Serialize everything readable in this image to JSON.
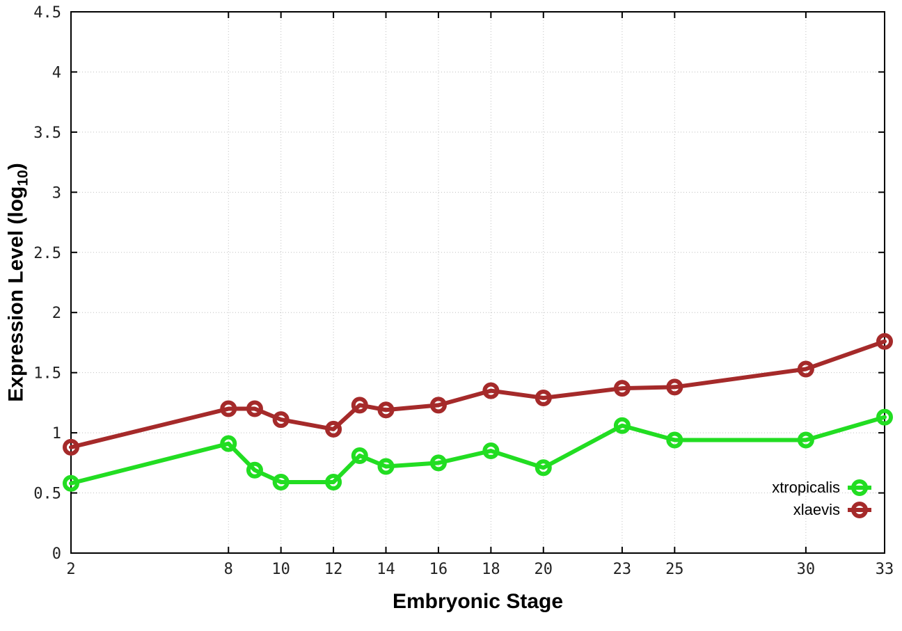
{
  "chart_data": {
    "type": "line",
    "title": "",
    "xlabel": "Embryonic Stage",
    "ylabel": "Expression Level (log10)",
    "ylabel_parts": {
      "main": "Expression Level (log",
      "sub": "10",
      "close": ")"
    },
    "x": [
      2,
      8,
      9,
      10,
      12,
      13,
      14,
      16,
      18,
      20,
      23,
      25,
      30,
      33
    ],
    "series": [
      {
        "name": "xtropicalis",
        "color": "#22dd22",
        "marker": "open-circle",
        "values": [
          0.58,
          0.91,
          0.69,
          0.59,
          0.59,
          0.81,
          0.72,
          0.75,
          0.85,
          0.71,
          1.06,
          0.94,
          0.94,
          1.13
        ]
      },
      {
        "name": "xlaevis",
        "color": "#a52a2a",
        "marker": "open-circle",
        "values": [
          0.88,
          1.2,
          1.2,
          1.11,
          1.03,
          1.23,
          1.19,
          1.23,
          1.35,
          1.29,
          1.37,
          1.38,
          1.53,
          1.76
        ]
      }
    ],
    "x_ticks": [
      2,
      8,
      10,
      12,
      14,
      16,
      18,
      20,
      23,
      25,
      30,
      33
    ],
    "x_tick_labels": [
      "2",
      "8",
      "10",
      "12",
      "14",
      "16",
      "18",
      "20",
      "23",
      "25",
      "30",
      "33"
    ],
    "y_ticks": [
      0,
      0.5,
      1,
      1.5,
      2,
      2.5,
      3,
      3.5,
      4,
      4.5
    ],
    "y_tick_labels": [
      "0",
      "0.5",
      "1",
      "1.5",
      "2",
      "2.5",
      "3",
      "3.5",
      "4",
      "4.5"
    ],
    "xlim": [
      2,
      33
    ],
    "ylim": [
      0,
      4.5
    ],
    "grid": true,
    "legend_position": "bottom-right-inside",
    "colors": {
      "background": "#ffffff",
      "axis": "#000000",
      "grid": "#bfbfbf",
      "tick_label": "#222222"
    }
  },
  "legend": {
    "items": [
      {
        "label": "xtropicalis",
        "color": "#22dd22"
      },
      {
        "label": "xlaevis",
        "color": "#a52a2a"
      }
    ]
  }
}
